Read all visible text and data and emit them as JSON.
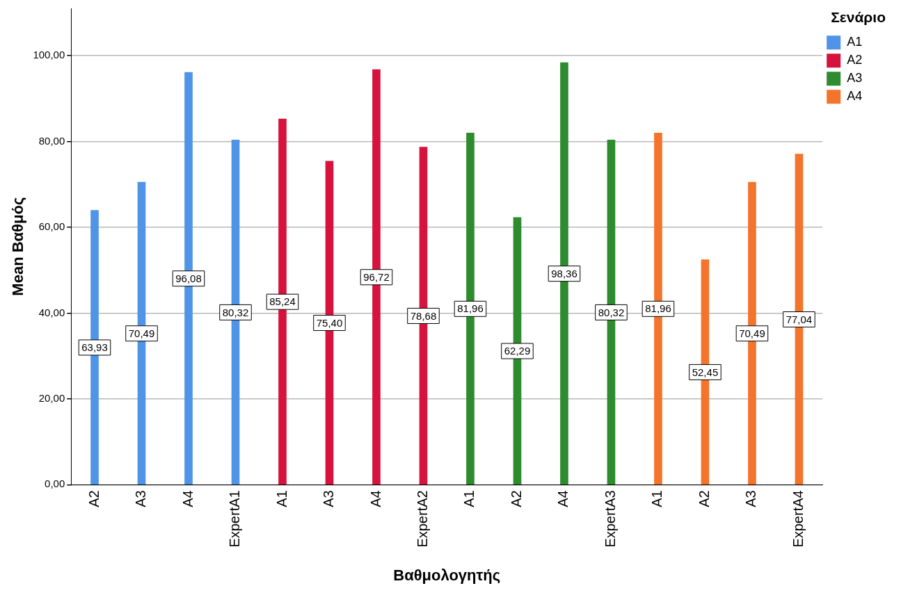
{
  "chart_data": {
    "type": "bar",
    "xlabel": "Βαθμολογητής",
    "ylabel": "Mean Βαθμός",
    "legend_title": "Σενάριο",
    "categories": [
      "A2",
      "A3",
      "A4",
      "ExpertA1",
      "A1",
      "A3",
      "A4",
      "ExpertA2",
      "A1",
      "A2",
      "A4",
      "ExpertA3",
      "A1",
      "A2",
      "A3",
      "ExpertA4"
    ],
    "series": [
      {
        "name": "A1",
        "color": "#4f94e6",
        "values": [
          63.93,
          70.49,
          96.08,
          80.32,
          null,
          null,
          null,
          null,
          null,
          null,
          null,
          null,
          null,
          null,
          null,
          null
        ],
        "value_labels": [
          "63,93",
          "70,49",
          "96,08",
          "80,32",
          null,
          null,
          null,
          null,
          null,
          null,
          null,
          null,
          null,
          null,
          null,
          null
        ]
      },
      {
        "name": "A2",
        "color": "#d5133c",
        "values": [
          null,
          null,
          null,
          null,
          85.24,
          75.4,
          96.72,
          78.68,
          null,
          null,
          null,
          null,
          null,
          null,
          null,
          null
        ],
        "value_labels": [
          null,
          null,
          null,
          null,
          "85,24",
          "75,40",
          "96,72",
          "78,68",
          null,
          null,
          null,
          null,
          null,
          null,
          null,
          null
        ]
      },
      {
        "name": "A3",
        "color": "#2e8b2e",
        "values": [
          null,
          null,
          null,
          null,
          null,
          null,
          null,
          null,
          81.96,
          62.29,
          98.36,
          80.32,
          null,
          null,
          null,
          null
        ],
        "value_labels": [
          null,
          null,
          null,
          null,
          null,
          null,
          null,
          null,
          "81,96",
          "62,29",
          "98,36",
          "80,32",
          null,
          null,
          null,
          null
        ]
      },
      {
        "name": "A4",
        "color": "#f4742b",
        "values": [
          null,
          null,
          null,
          null,
          null,
          null,
          null,
          null,
          null,
          null,
          null,
          null,
          81.96,
          52.45,
          70.49,
          77.04
        ],
        "value_labels": [
          null,
          null,
          null,
          null,
          null,
          null,
          null,
          null,
          null,
          null,
          null,
          null,
          "81,96",
          "52,45",
          "70,49",
          "77,04"
        ]
      }
    ],
    "ylim": [
      0,
      111
    ],
    "yticks": [
      {
        "value": 0,
        "label": "0,00"
      },
      {
        "value": 20,
        "label": "20,00"
      },
      {
        "value": 40,
        "label": "40,00"
      },
      {
        "value": 60,
        "label": "60,00"
      },
      {
        "value": 80,
        "label": "80,00"
      },
      {
        "value": 100,
        "label": "100,00"
      }
    ],
    "grid": "y",
    "legend": "top right"
  }
}
